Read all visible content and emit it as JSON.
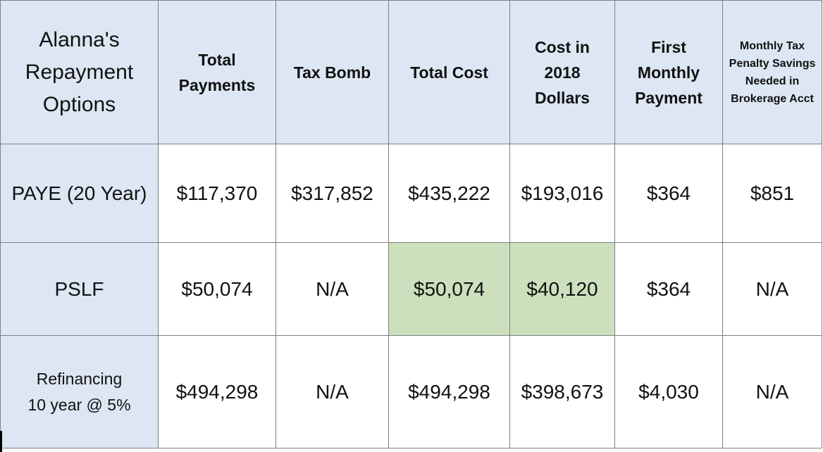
{
  "table": {
    "corner": "Alanna's\nRepayment\nOptions",
    "headers": [
      "Total\nPayments",
      "Tax Bomb",
      "Total Cost",
      "Cost in\n2018\nDollars",
      "First\nMonthly\nPayment",
      "Monthly Tax\nPenalty Savings\nNeeded in\nBrokerage Acct"
    ],
    "rows": [
      {
        "label": "PAYE (20 Year)",
        "cells": [
          "$117,370",
          "$317,852",
          "$435,222",
          "$193,016",
          "$364",
          "$851"
        ]
      },
      {
        "label": "PSLF",
        "cells": [
          "$50,074",
          "N/A",
          "$50,074",
          "$40,120",
          "$364",
          "N/A"
        ]
      },
      {
        "label": "Refinancing\n10 year @ 5%",
        "cells": [
          "$494,298",
          "N/A",
          "$494,298",
          "$398,673",
          "$4,030",
          "N/A"
        ]
      }
    ]
  },
  "colors": {
    "header_background": "#dde7f3",
    "highlight": "#cce0bd",
    "border": "#7f7f7f"
  }
}
